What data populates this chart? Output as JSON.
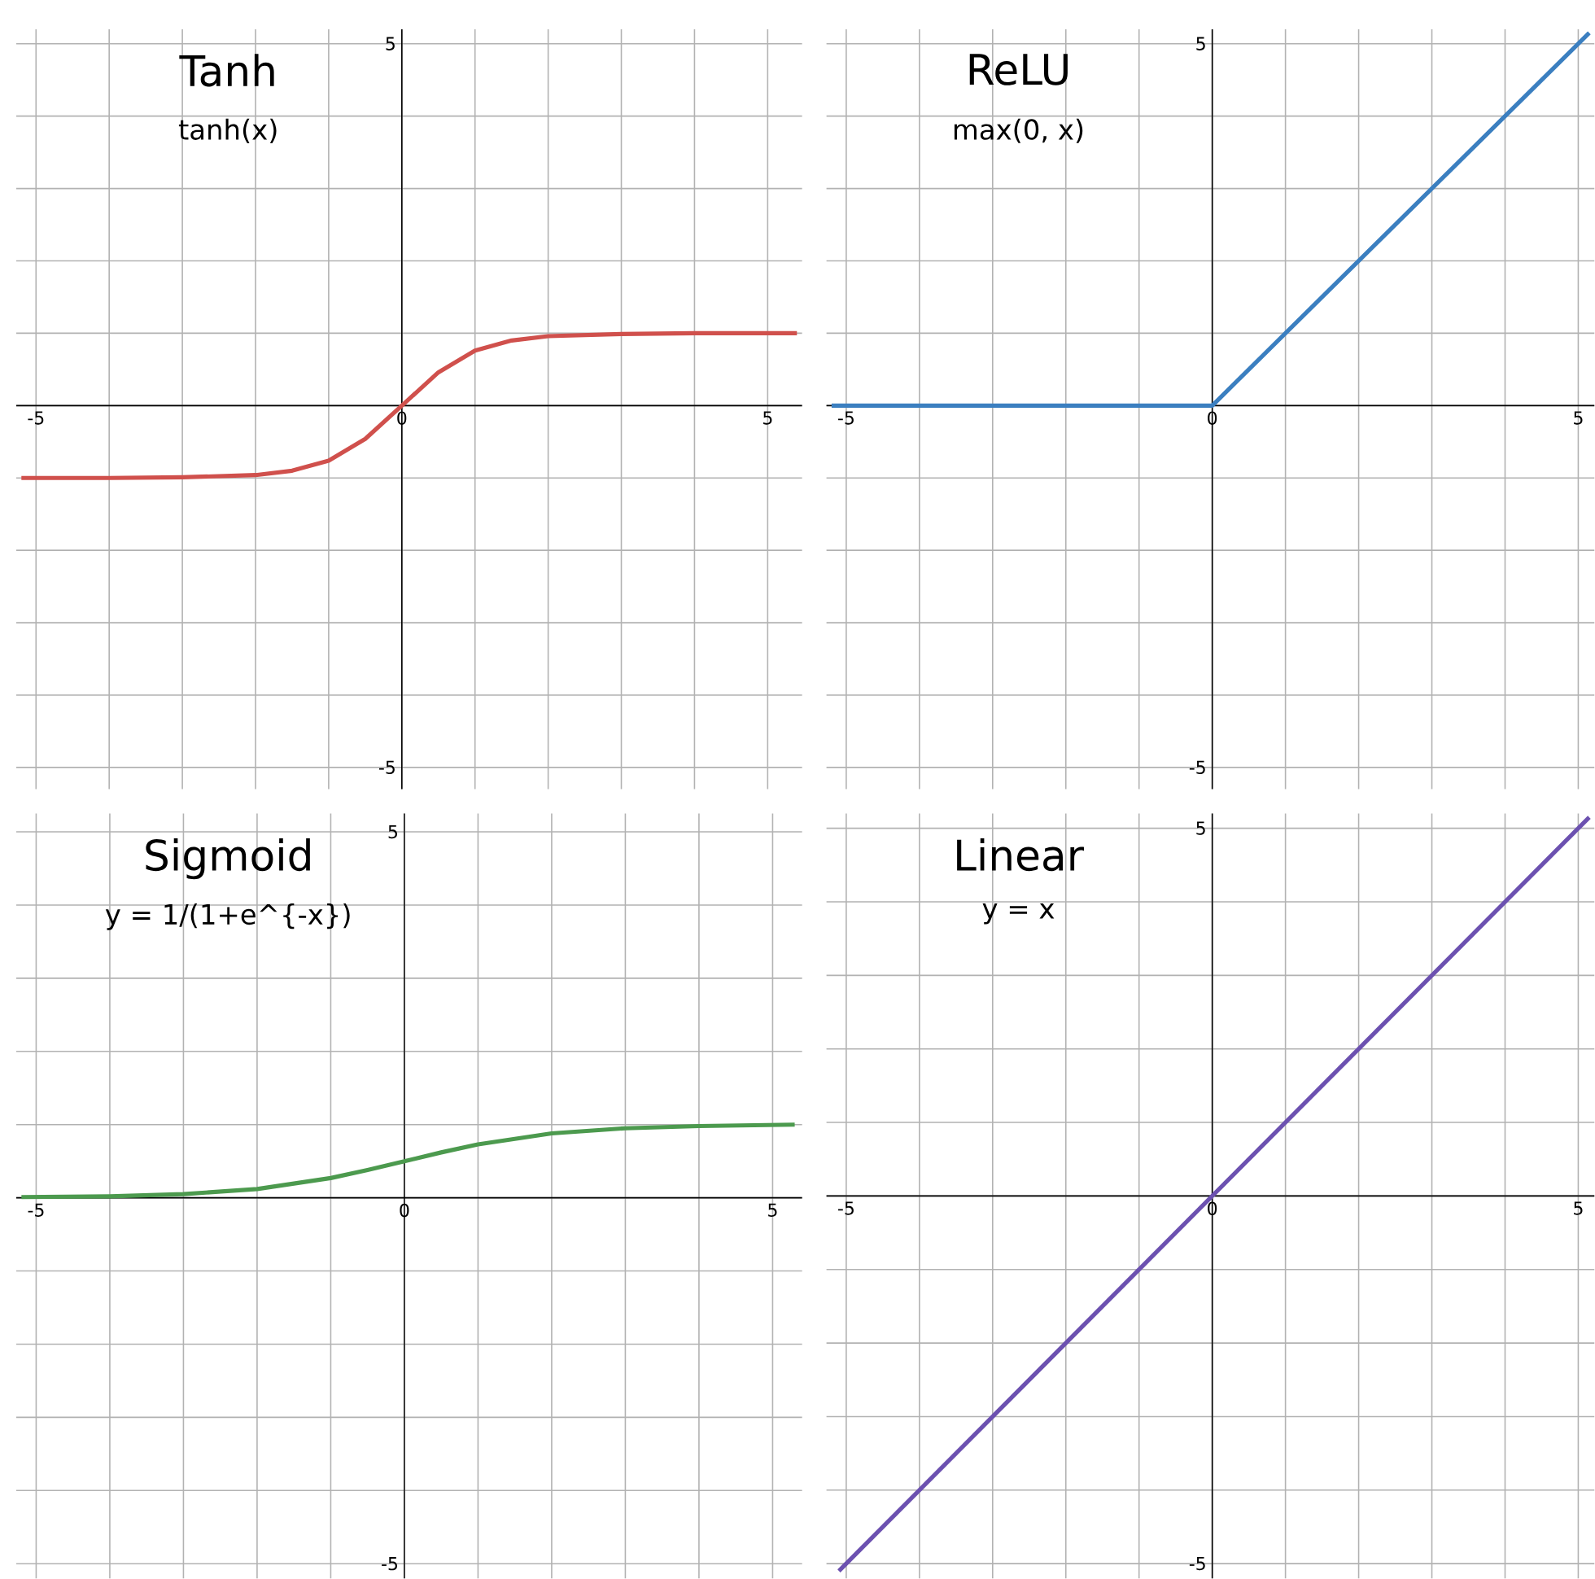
{
  "chart_data": [
    {
      "type": "line",
      "title": "Tanh",
      "subtitle": "tanh(x)",
      "xlim": [
        -5.27,
        5.47
      ],
      "ylim": [
        -5.3,
        5.2
      ],
      "xticks": [
        -5,
        {
          "value": -4,
          "label": null
        },
        {
          "value": -3,
          "label": null
        },
        {
          "value": -2,
          "label": null
        },
        {
          "value": -1,
          "label": null
        },
        0,
        {
          "value": 1,
          "label": null
        },
        {
          "value": 2,
          "label": null
        },
        {
          "value": 3,
          "label": null
        },
        {
          "value": 4,
          "label": null
        },
        5
      ],
      "yticks": [
        -5,
        {
          "value": -4,
          "label": null
        },
        {
          "value": -3,
          "label": null
        },
        {
          "value": -2,
          "label": null
        },
        {
          "value": -1,
          "label": null
        },
        {
          "value": 0,
          "label": null
        },
        {
          "value": 1,
          "label": null
        },
        {
          "value": 2,
          "label": null
        },
        {
          "value": 3,
          "label": null
        },
        {
          "value": 4,
          "label": null
        },
        5
      ],
      "grid": true,
      "marker": "none",
      "series": [
        {
          "color": "#d0504c",
          "x": [
            -5.2,
            -4,
            -3,
            -2,
            -1.5,
            -1,
            -0.5,
            0,
            0.5,
            1,
            1.5,
            2,
            3,
            4,
            5.4
          ],
          "values": [
            -1,
            -1,
            -0.99,
            -0.96,
            -0.9,
            -0.76,
            -0.46,
            0,
            0.46,
            0.76,
            0.9,
            0.96,
            0.99,
            1,
            1
          ]
        }
      ]
    },
    {
      "type": "line",
      "title": "ReLU",
      "subtitle": "max(0, x)",
      "xlim": [
        -5.27,
        5.22
      ],
      "ylim": [
        -5.3,
        5.2
      ],
      "xticks": [
        -5,
        {
          "value": -4,
          "label": null
        },
        {
          "value": -3,
          "label": null
        },
        {
          "value": -2,
          "label": null
        },
        {
          "value": -1,
          "label": null
        },
        0,
        {
          "value": 1,
          "label": null
        },
        {
          "value": 2,
          "label": null
        },
        {
          "value": 3,
          "label": null
        },
        {
          "value": 4,
          "label": null
        },
        5
      ],
      "yticks": [
        -5,
        {
          "value": -4,
          "label": null
        },
        {
          "value": -3,
          "label": null
        },
        {
          "value": -2,
          "label": null
        },
        {
          "value": -1,
          "label": null
        },
        {
          "value": 0,
          "label": null
        },
        {
          "value": 1,
          "label": null
        },
        {
          "value": 2,
          "label": null
        },
        {
          "value": 3,
          "label": null
        },
        {
          "value": 4,
          "label": null
        },
        5
      ],
      "grid": true,
      "marker": "none",
      "series": [
        {
          "color": "#3b7fc0",
          "x": [
            -5.2,
            0,
            5.15
          ],
          "values": [
            0,
            0,
            5.15
          ]
        }
      ]
    },
    {
      "type": "line",
      "title": "Sigmoid",
      "subtitle": "y = 1/(1+e^{-x})",
      "xlim": [
        -5.27,
        5.4
      ],
      "ylim": [
        -5.2,
        5.25
      ],
      "xticks": [
        -5,
        {
          "value": -4,
          "label": null
        },
        {
          "value": -3,
          "label": null
        },
        {
          "value": -2,
          "label": null
        },
        {
          "value": -1,
          "label": null
        },
        0,
        {
          "value": 1,
          "label": null
        },
        {
          "value": 2,
          "label": null
        },
        {
          "value": 3,
          "label": null
        },
        {
          "value": 4,
          "label": null
        },
        5
      ],
      "yticks": [
        -5,
        {
          "value": -4,
          "label": null
        },
        {
          "value": -3,
          "label": null
        },
        {
          "value": -2,
          "label": null
        },
        {
          "value": -1,
          "label": null
        },
        {
          "value": 0,
          "label": null
        },
        {
          "value": 1,
          "label": null
        },
        {
          "value": 2,
          "label": null
        },
        {
          "value": 3,
          "label": null
        },
        {
          "value": 4,
          "label": null
        },
        5
      ],
      "grid": true,
      "marker": "none",
      "series": [
        {
          "color": "#4c9a4e",
          "x": [
            -5.2,
            -4,
            -3,
            -2,
            -1,
            -0.5,
            0,
            0.5,
            1,
            2,
            3,
            4,
            5.3
          ],
          "values": [
            0.01,
            0.02,
            0.05,
            0.12,
            0.27,
            0.38,
            0.5,
            0.62,
            0.73,
            0.88,
            0.95,
            0.98,
            1
          ]
        }
      ]
    },
    {
      "type": "line",
      "title": "Linear",
      "subtitle": "y = x",
      "xlim": [
        -5.27,
        5.22
      ],
      "ylim": [
        -5.2,
        5.2
      ],
      "xticks": [
        -5,
        {
          "value": -4,
          "label": null
        },
        {
          "value": -3,
          "label": null
        },
        {
          "value": -2,
          "label": null
        },
        {
          "value": -1,
          "label": null
        },
        0,
        {
          "value": 1,
          "label": null
        },
        {
          "value": 2,
          "label": null
        },
        {
          "value": 3,
          "label": null
        },
        {
          "value": 4,
          "label": null
        },
        5
      ],
      "yticks": [
        -5,
        {
          "value": -4,
          "label": null
        },
        {
          "value": -3,
          "label": null
        },
        {
          "value": -2,
          "label": null
        },
        {
          "value": -1,
          "label": null
        },
        {
          "value": 0,
          "label": null
        },
        {
          "value": 1,
          "label": null
        },
        {
          "value": 2,
          "label": null
        },
        {
          "value": 3,
          "label": null
        },
        {
          "value": 4,
          "label": null
        },
        5
      ],
      "grid": true,
      "marker": "none",
      "series": [
        {
          "color": "#6c51b0",
          "x": [
            -5.1,
            5.15
          ],
          "values": [
            -5.1,
            5.15
          ]
        }
      ]
    }
  ]
}
